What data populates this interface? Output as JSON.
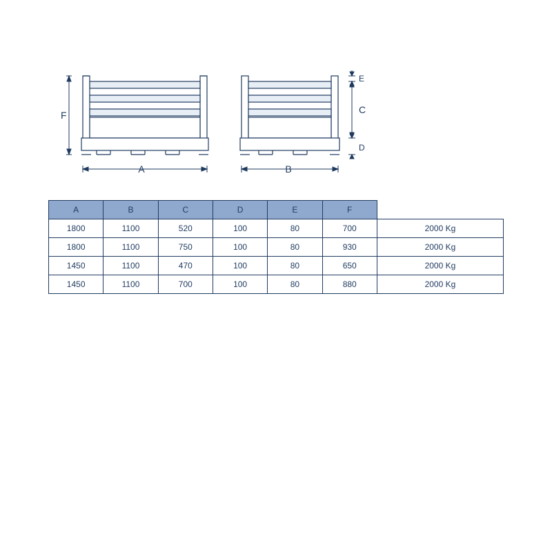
{
  "diagram": {
    "labels": {
      "A": "A",
      "B": "B",
      "C": "C",
      "D": "D",
      "E": "E",
      "F": "F"
    },
    "stroke": "#1f3a5f",
    "fill_light": "#e8eef6",
    "label_fontsize": 14
  },
  "table": {
    "type": "table",
    "border_color": "#1f3a5f",
    "header_bg": "#8fa8ce",
    "text_color": "#1f3a5f",
    "cell_fontsize": 12,
    "columns": [
      "A",
      "B",
      "C",
      "D",
      "E",
      "F",
      ""
    ],
    "rows": [
      [
        "1800",
        "1100",
        "520",
        "100",
        "80",
        "700",
        "2000 Kg"
      ],
      [
        "1800",
        "1100",
        "750",
        "100",
        "80",
        "930",
        "2000 Kg"
      ],
      [
        "1450",
        "1100",
        "470",
        "100",
        "80",
        "650",
        "2000 Kg"
      ],
      [
        "1450",
        "1100",
        "700",
        "100",
        "80",
        "880",
        "2000 Kg"
      ]
    ]
  }
}
